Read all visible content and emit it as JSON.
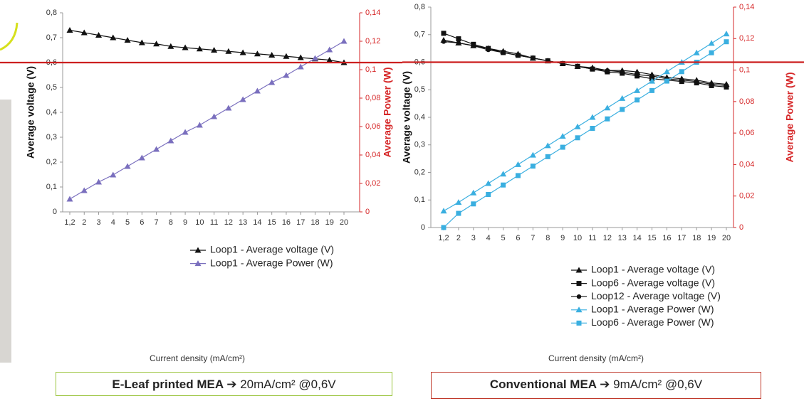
{
  "chart_data": [
    {
      "type": "line",
      "x_label": "Current density (mA/cm²)",
      "y_label": "Average voltage (V)",
      "y2_label": "Average Power (W)",
      "y2_color": "#d62728",
      "categories": [
        "1,2",
        "2",
        "3",
        "4",
        "5",
        "6",
        "7",
        "8",
        "9",
        "10",
        "11",
        "12",
        "13",
        "14",
        "15",
        "16",
        "17",
        "18",
        "19",
        "20"
      ],
      "ylim": [
        0,
        0.8
      ],
      "yticks": [
        0,
        {
          "value": 0.1,
          "label": "0,1"
        },
        {
          "value": 0.2,
          "label": "0,2"
        },
        {
          "value": 0.3,
          "label": "0,3"
        },
        {
          "value": 0.4,
          "label": "0,4"
        },
        {
          "value": 0.5,
          "label": "0,5"
        },
        {
          "value": 0.6,
          "label": "0,6"
        },
        {
          "value": 0.7,
          "label": "0,7"
        },
        {
          "value": 0.8,
          "label": "0,8"
        }
      ],
      "y2lim": [
        0,
        0.14
      ],
      "y2ticks": [
        0,
        {
          "value": 0.02,
          "label": "0,02"
        },
        {
          "value": 0.04,
          "label": "0,04"
        },
        {
          "value": 0.06,
          "label": "0,06"
        },
        {
          "value": 0.08,
          "label": "0,08"
        },
        {
          "value": 0.1,
          "label": "0,1"
        },
        {
          "value": 0.12,
          "label": "0,12"
        },
        {
          "value": 0.14,
          "label": "0,14"
        }
      ],
      "reference_line": {
        "value": 0.6,
        "color": "#cc1f1f"
      },
      "series": [
        {
          "name": "Loop1 - Average voltage (V)",
          "color": "#111111",
          "marker": "triangle",
          "values": [
            0.73,
            0.72,
            0.71,
            0.7,
            0.69,
            0.68,
            0.675,
            0.665,
            0.66,
            0.655,
            0.65,
            0.645,
            0.64,
            0.635,
            0.63,
            0.625,
            0.62,
            0.615,
            0.61,
            0.6
          ]
        },
        {
          "name": "Loop1 - Average Power (W)",
          "color": "#7a6fbe",
          "marker": "triangle",
          "axis": "y2",
          "values": [
            0.009,
            0.015,
            0.021,
            0.026,
            0.032,
            0.038,
            0.044,
            0.05,
            0.056,
            0.061,
            0.067,
            0.073,
            0.079,
            0.085,
            0.091,
            0.096,
            0.102,
            0.108,
            0.114,
            0.12
          ]
        }
      ],
      "caption": {
        "bold": "E-Leaf printed MEA ➔",
        "text": "20mA/cm² @0,6V",
        "border": "#9ac43c"
      }
    },
    {
      "type": "line",
      "x_label": "Current density (mA/cm²)",
      "y_label": "Average voltage (V)",
      "y2_label": "Average Power (W)",
      "y2_color": "#d62728",
      "categories": [
        "1,2",
        "2",
        "3",
        "4",
        "5",
        "6",
        "7",
        "8",
        "9",
        "10",
        "11",
        "12",
        "13",
        "14",
        "15",
        "16",
        "17",
        "18",
        "19",
        "20"
      ],
      "ylim": [
        0,
        0.8
      ],
      "yticks": [
        0,
        {
          "value": 0.1,
          "label": "0,1"
        },
        {
          "value": 0.2,
          "label": "0,2"
        },
        {
          "value": 0.3,
          "label": "0,3"
        },
        {
          "value": 0.4,
          "label": "0,4"
        },
        {
          "value": 0.5,
          "label": "0,5"
        },
        {
          "value": 0.6,
          "label": "0,6"
        },
        {
          "value": 0.7,
          "label": "0,7"
        },
        {
          "value": 0.8,
          "label": "0,8"
        }
      ],
      "y2lim": [
        0,
        0.14
      ],
      "y2ticks": [
        0,
        {
          "value": 0.02,
          "label": "0,02"
        },
        {
          "value": 0.04,
          "label": "0,04"
        },
        {
          "value": 0.06,
          "label": "0,06"
        },
        {
          "value": 0.08,
          "label": "0,08"
        },
        {
          "value": 0.1,
          "label": "0,1"
        },
        {
          "value": 0.12,
          "label": "0,12"
        },
        {
          "value": 0.14,
          "label": "0,14"
        }
      ],
      "reference_line": {
        "value": 0.6,
        "color": "#cc1f1f"
      },
      "series": [
        {
          "name": "Loop1 - Average voltage (V)",
          "color": "#111111",
          "marker": "triangle",
          "values": [
            0.68,
            0.67,
            0.66,
            0.65,
            0.64,
            0.63,
            0.615,
            0.605,
            0.595,
            0.585,
            0.58,
            0.57,
            0.57,
            0.565,
            0.555,
            0.545,
            0.54,
            0.535,
            0.525,
            0.52
          ]
        },
        {
          "name": "Loop6 - Average voltage (V)",
          "color": "#111111",
          "marker": "square",
          "values": [
            0.705,
            0.685,
            0.665,
            0.65,
            0.635,
            0.625,
            0.615,
            0.605,
            0.595,
            0.585,
            0.575,
            0.565,
            0.56,
            0.55,
            0.54,
            0.535,
            0.53,
            0.525,
            0.515,
            0.51
          ]
        },
        {
          "name": "Loop12 - Average voltage (V)",
          "color": "#111111",
          "marker": "circle",
          "values": [
            0.675,
            0.67,
            0.66,
            0.645,
            0.635,
            0.625,
            0.615,
            0.605,
            0.595,
            0.585,
            0.575,
            0.57,
            0.565,
            0.555,
            0.55,
            0.54,
            0.535,
            0.53,
            0.52,
            0.515
          ]
        },
        {
          "name": "Loop1 - Average Power (W)",
          "color": "#3aafe0",
          "marker": "triangle",
          "axis": "y2",
          "values": [
            0.0105,
            0.016,
            0.022,
            0.028,
            0.034,
            0.04,
            0.046,
            0.052,
            0.058,
            0.064,
            0.07,
            0.076,
            0.082,
            0.087,
            0.093,
            0.099,
            0.105,
            0.111,
            0.117,
            0.123
          ]
        },
        {
          "name": "Loop6 - Average Power (W)",
          "color": "#3aafe0",
          "marker": "square",
          "axis": "y2",
          "values": [
            0,
            0.009,
            0.015,
            0.021,
            0.027,
            0.033,
            0.039,
            0.045,
            0.051,
            0.057,
            0.063,
            0.069,
            0.075,
            0.081,
            0.087,
            0.093,
            0.099,
            0.105,
            0.111,
            0.118
          ]
        }
      ],
      "caption": {
        "bold": "Conventional MEA ➔",
        "text": "9mA/cm² @0,6V",
        "border": "#c0392b"
      }
    }
  ]
}
